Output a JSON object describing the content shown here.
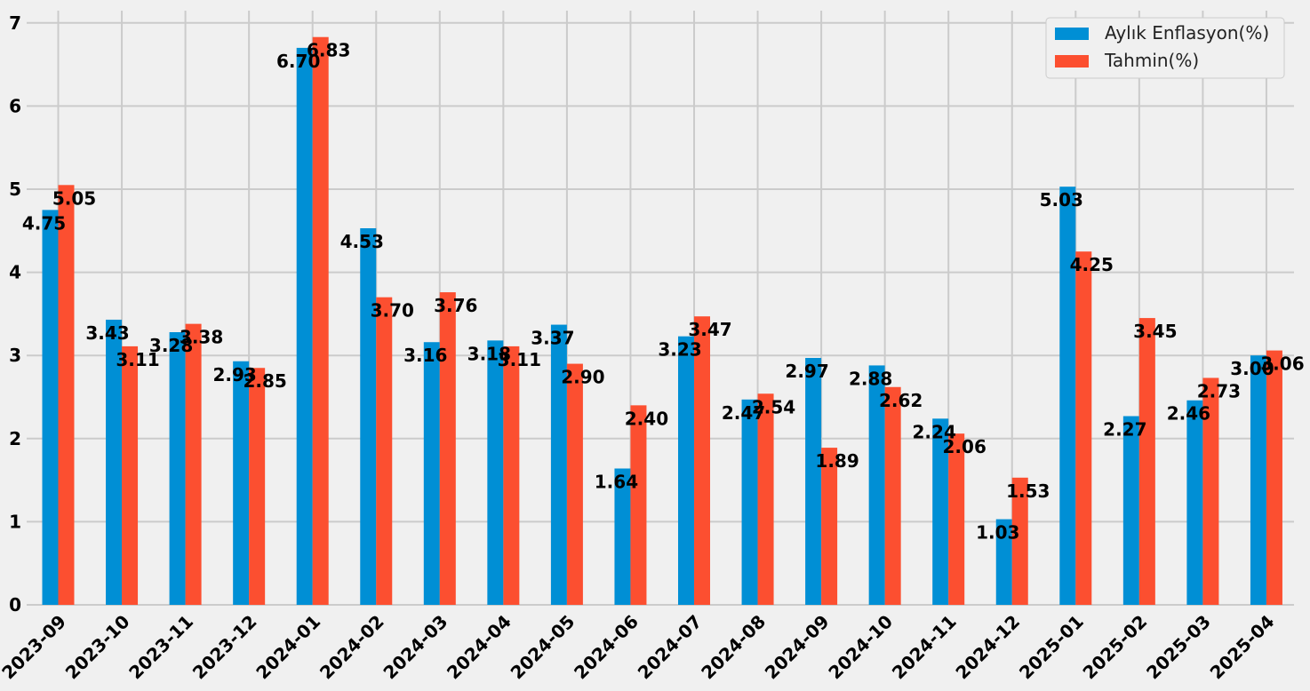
{
  "chart_data": {
    "type": "bar",
    "categories": [
      "2023-09",
      "2023-10",
      "2023-11",
      "2023-12",
      "2024-01",
      "2024-02",
      "2024-03",
      "2024-04",
      "2024-05",
      "2024-06",
      "2024-07",
      "2024-08",
      "2024-09",
      "2024-10",
      "2024-11",
      "2024-12",
      "2025-01",
      "2025-02",
      "2025-03",
      "2025-04"
    ],
    "series": [
      {
        "name": "Aylık Enflasyon(%)",
        "color": "#008fd5",
        "values": [
          4.75,
          3.43,
          3.28,
          2.93,
          6.7,
          4.53,
          3.16,
          3.18,
          3.37,
          1.64,
          3.23,
          2.47,
          2.97,
          2.88,
          2.24,
          1.03,
          5.03,
          2.27,
          2.46,
          3.0
        ],
        "labels": [
          "4.75",
          "3.43",
          "3.28",
          "2.93",
          "6.70",
          "4.53",
          "3.16",
          "3.18",
          "3.37",
          "1.64",
          "3.23",
          "2.47",
          "2.97",
          "2.88",
          "2.24",
          "1.03",
          "5.03",
          "2.27",
          "2.46",
          "3.00"
        ]
      },
      {
        "name": "Tahmin(%)",
        "color": "#fc4f30",
        "values": [
          5.05,
          3.11,
          3.38,
          2.85,
          6.83,
          3.7,
          3.76,
          3.11,
          2.9,
          2.4,
          3.47,
          2.54,
          1.89,
          2.62,
          2.06,
          1.53,
          4.25,
          3.45,
          2.73,
          3.06
        ],
        "labels": [
          "5.05",
          "3.11",
          "3.38",
          "2.85",
          "6.83",
          "3.70",
          "3.76",
          "3.11",
          "2.90",
          "2.40",
          "3.47",
          "2.54",
          "1.89",
          "2.62",
          "2.06",
          "1.53",
          "4.25",
          "3.45",
          "2.73",
          "3.06"
        ]
      }
    ],
    "yticks": [
      "0",
      "1",
      "2",
      "3",
      "4",
      "5",
      "6",
      "7"
    ],
    "ylim": [
      0,
      7.05
    ],
    "title": "",
    "xlabel": "",
    "ylabel": "",
    "grid": true,
    "legend_position": "top-right"
  }
}
